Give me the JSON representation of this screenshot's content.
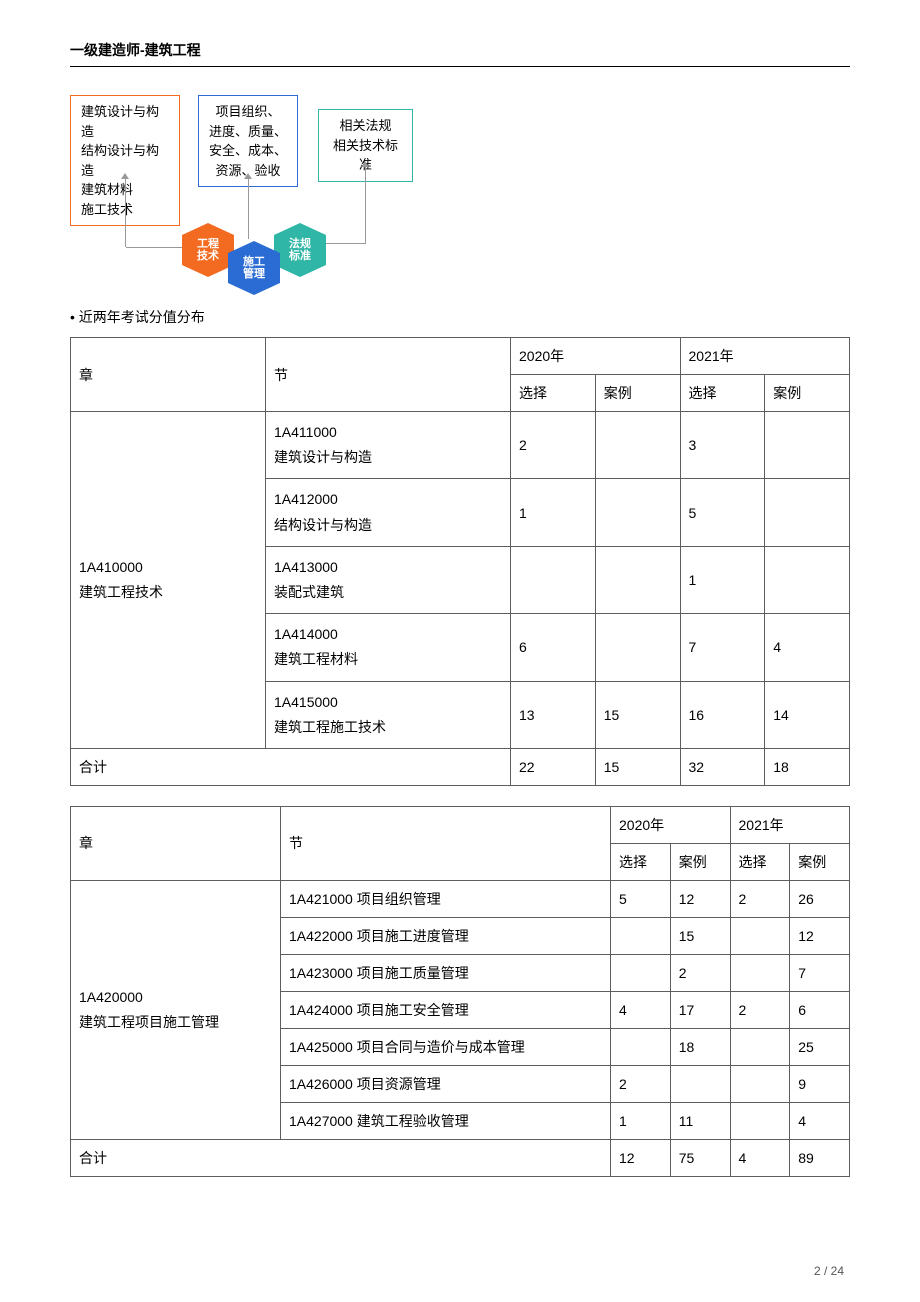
{
  "header": {
    "title": "一级建造师-建筑工程"
  },
  "diagram": {
    "box1_lines": [
      "建筑设计与构造",
      "结构设计与构造",
      "建筑材料",
      "施工技术"
    ],
    "box2_lines": [
      "项目组织、",
      "进度、质量、",
      "安全、成本、",
      "资源、验收"
    ],
    "box3_lines": [
      "相关法规",
      "相关技术标准"
    ],
    "hex1": "工程\n技术",
    "hex2": "施工\n管理",
    "hex3": "法规\n标准"
  },
  "section_label": "• 近两年考试分值分布",
  "table1": {
    "headers": {
      "chapter": "章",
      "section": "节",
      "y2020": "2020年",
      "y2021": "2021年",
      "choice": "选择",
      "case": "案例"
    },
    "chapter": {
      "code": "1A410000",
      "name": "建筑工程技术"
    },
    "rows": [
      {
        "code": "1A411000",
        "name": "建筑设计与构造",
        "c2020": "2",
        "a2020": "",
        "c2021": "3",
        "a2021": ""
      },
      {
        "code": "1A412000",
        "name": "结构设计与构造",
        "c2020": "1",
        "a2020": "",
        "c2021": "5",
        "a2021": ""
      },
      {
        "code": "1A413000",
        "name": "装配式建筑",
        "c2020": "",
        "a2020": "",
        "c2021": "1",
        "a2021": ""
      },
      {
        "code": "1A414000",
        "name": "建筑工程材料",
        "c2020": "6",
        "a2020": "",
        "c2021": "7",
        "a2021": "4"
      },
      {
        "code": "1A415000",
        "name": "建筑工程施工技术",
        "c2020": "13",
        "a2020": "15",
        "c2021": "16",
        "a2021": "14"
      }
    ],
    "total": {
      "label": "合计",
      "c2020": "22",
      "a2020": "15",
      "c2021": "32",
      "a2021": "18"
    }
  },
  "table2": {
    "headers": {
      "chapter": "章",
      "section": "节",
      "y2020": "2020年",
      "y2021": "2021年",
      "choice": "选择",
      "case": "案例"
    },
    "chapter": {
      "code": "1A420000",
      "name": "建筑工程项目施工管理"
    },
    "rows": [
      {
        "label": "1A421000 项目组织管理",
        "c2020": "5",
        "a2020": "12",
        "c2021": "2",
        "a2021": "26"
      },
      {
        "label": "1A422000 项目施工进度管理",
        "c2020": "",
        "a2020": "15",
        "c2021": "",
        "a2021": "12"
      },
      {
        "label": "1A423000 项目施工质量管理",
        "c2020": "",
        "a2020": "2",
        "c2021": "",
        "a2021": "7"
      },
      {
        "label": "1A424000 项目施工安全管理",
        "c2020": "4",
        "a2020": "17",
        "c2021": "2",
        "a2021": "6"
      },
      {
        "label": "1A425000 项目合同与造价与成本管理",
        "c2020": "",
        "a2020": "18",
        "c2021": "",
        "a2021": "25"
      },
      {
        "label": "1A426000 项目资源管理",
        "c2020": "2",
        "a2020": "",
        "c2021": "",
        "a2021": "9"
      },
      {
        "label": "1A427000 建筑工程验收管理",
        "c2020": "1",
        "a2020": "11",
        "c2021": "",
        "a2021": "4"
      }
    ],
    "total": {
      "label": "合计",
      "c2020": "12",
      "a2020": "75",
      "c2021": "4",
      "a2021": "89"
    }
  },
  "page": {
    "current": "2",
    "total": "24",
    "sep": " / "
  }
}
